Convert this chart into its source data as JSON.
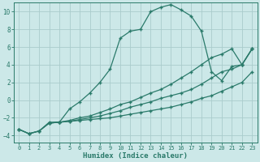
{
  "xlabel": "Humidex (Indice chaleur)",
  "bg_color": "#cce8e8",
  "grid_color": "#aacccc",
  "line_color": "#2a7a6a",
  "xlim": [
    -0.5,
    23.5
  ],
  "ylim": [
    -4.8,
    11.0
  ],
  "xticks": [
    0,
    1,
    2,
    3,
    4,
    5,
    6,
    7,
    8,
    9,
    10,
    11,
    12,
    13,
    14,
    15,
    16,
    17,
    18,
    19,
    20,
    21,
    22,
    23
  ],
  "yticks": [
    -4,
    -2,
    0,
    2,
    4,
    6,
    8,
    10
  ],
  "line1_x": [
    0,
    1,
    2,
    3,
    4,
    5,
    6,
    7,
    8,
    9,
    10,
    11,
    12,
    13,
    14,
    15,
    16,
    17,
    18,
    19,
    20,
    21,
    22,
    23
  ],
  "line1_y": [
    -3.3,
    -3.8,
    -3.5,
    -2.5,
    -2.5,
    -1.0,
    -0.2,
    0.8,
    2.0,
    3.5,
    7.0,
    7.8,
    8.0,
    10.0,
    10.5,
    10.8,
    10.2,
    9.5,
    7.8,
    3.2,
    2.2,
    3.8,
    4.0,
    5.8
  ],
  "line2_x": [
    0,
    1,
    2,
    3,
    4,
    5,
    6,
    7,
    8,
    9,
    10,
    11,
    12,
    13,
    14,
    15,
    16,
    17,
    18,
    19,
    20,
    21,
    22,
    23
  ],
  "line2_y": [
    -3.3,
    -3.8,
    -3.5,
    -2.6,
    -2.5,
    -2.4,
    -2.3,
    -2.2,
    -2.1,
    -2.0,
    -1.8,
    -1.6,
    -1.4,
    -1.2,
    -1.0,
    -0.8,
    -0.5,
    -0.2,
    0.2,
    0.5,
    1.0,
    1.5,
    2.0,
    3.2
  ],
  "line3_x": [
    0,
    1,
    2,
    3,
    4,
    5,
    6,
    7,
    8,
    9,
    10,
    11,
    12,
    13,
    14,
    15,
    16,
    17,
    18,
    19,
    20,
    21,
    22,
    23
  ],
  "line3_y": [
    -3.3,
    -3.8,
    -3.5,
    -2.6,
    -2.5,
    -2.4,
    -2.2,
    -2.0,
    -1.8,
    -1.5,
    -1.2,
    -0.8,
    -0.5,
    -0.2,
    0.2,
    0.5,
    0.8,
    1.2,
    1.8,
    2.5,
    3.2,
    3.5,
    4.0,
    5.8
  ],
  "line4_x": [
    3,
    4,
    5,
    6,
    7,
    8,
    9,
    10,
    11,
    12,
    13,
    14,
    15,
    16,
    17,
    18,
    19,
    20,
    21,
    22,
    23
  ],
  "line4_y": [
    -2.6,
    -2.5,
    -2.3,
    -2.0,
    -1.8,
    -1.4,
    -1.0,
    -0.5,
    -0.2,
    0.3,
    0.8,
    1.2,
    1.8,
    2.5,
    3.2,
    4.0,
    4.8,
    5.2,
    5.8,
    4.0,
    5.8
  ]
}
